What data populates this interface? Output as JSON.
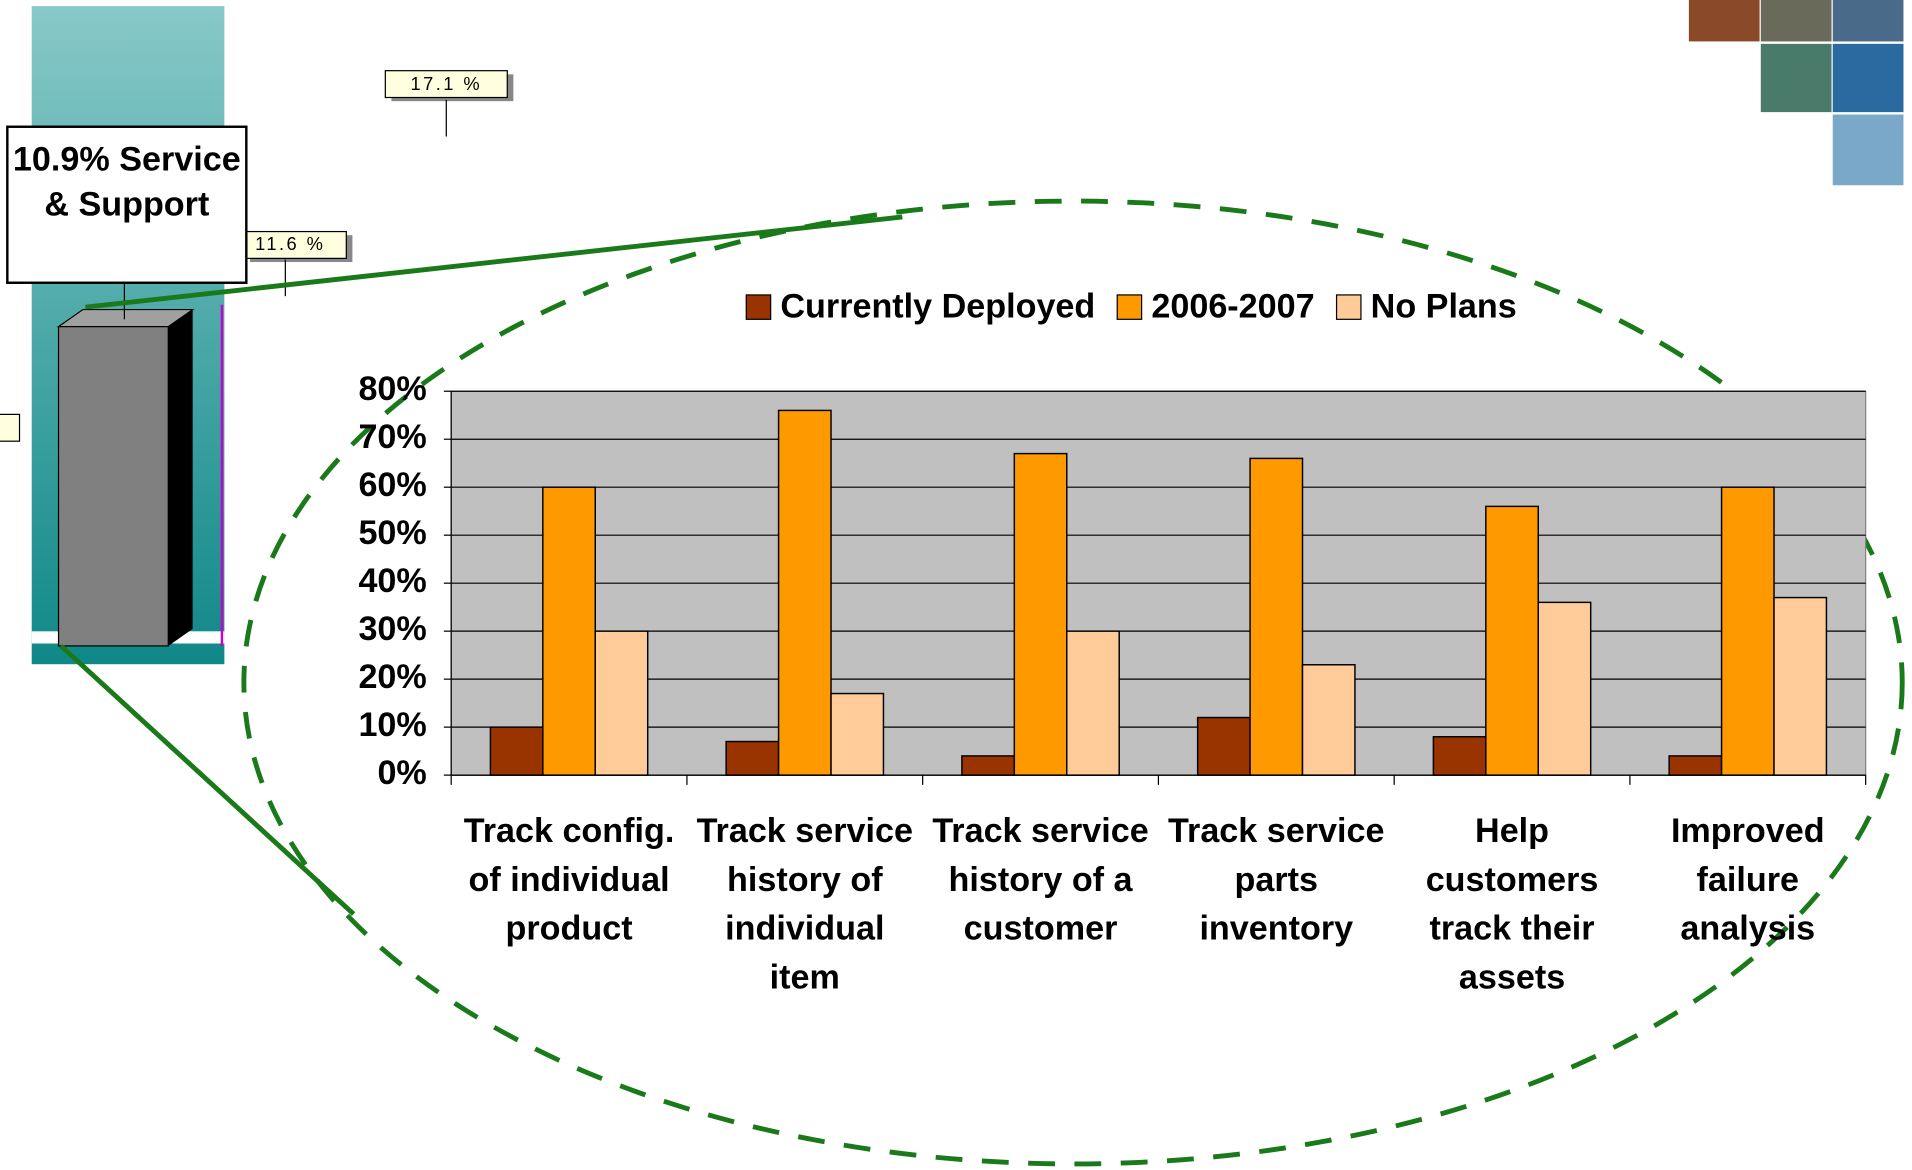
{
  "chart_data": {
    "type": "bar",
    "categories": [
      "Track config. of individual product",
      "Track service history of individual item",
      "Track service history of a customer",
      "Track service parts inventory",
      "Help customers track their assets",
      "Improved failure analysis"
    ],
    "series": [
      {
        "name": "Currently Deployed",
        "color": "#993300",
        "values": [
          10,
          7,
          4,
          12,
          8,
          4
        ]
      },
      {
        "name": "2006-2007",
        "color": "#ff9900",
        "values": [
          60,
          76,
          67,
          66,
          56,
          60
        ]
      },
      {
        "name": "No Plans",
        "color": "#ffcc99",
        "values": [
          30,
          17,
          30,
          23,
          36,
          37
        ]
      }
    ],
    "ylim": [
      0,
      80
    ],
    "yticks": [
      {
        "value": 0,
        "label": "0%"
      },
      {
        "value": 10,
        "label": "10%"
      },
      {
        "value": 20,
        "label": "20%"
      },
      {
        "value": 30,
        "label": "30%"
      },
      {
        "value": 40,
        "label": "40%"
      },
      {
        "value": 50,
        "label": "50%"
      },
      {
        "value": 60,
        "label": "60%"
      },
      {
        "value": 70,
        "label": "70%"
      },
      {
        "value": 80,
        "label": "80%"
      }
    ],
    "grid": true,
    "legend": "top",
    "annotations": [
      "10.9% Service & Support",
      "17.1 %",
      "11.6 %"
    ]
  }
}
